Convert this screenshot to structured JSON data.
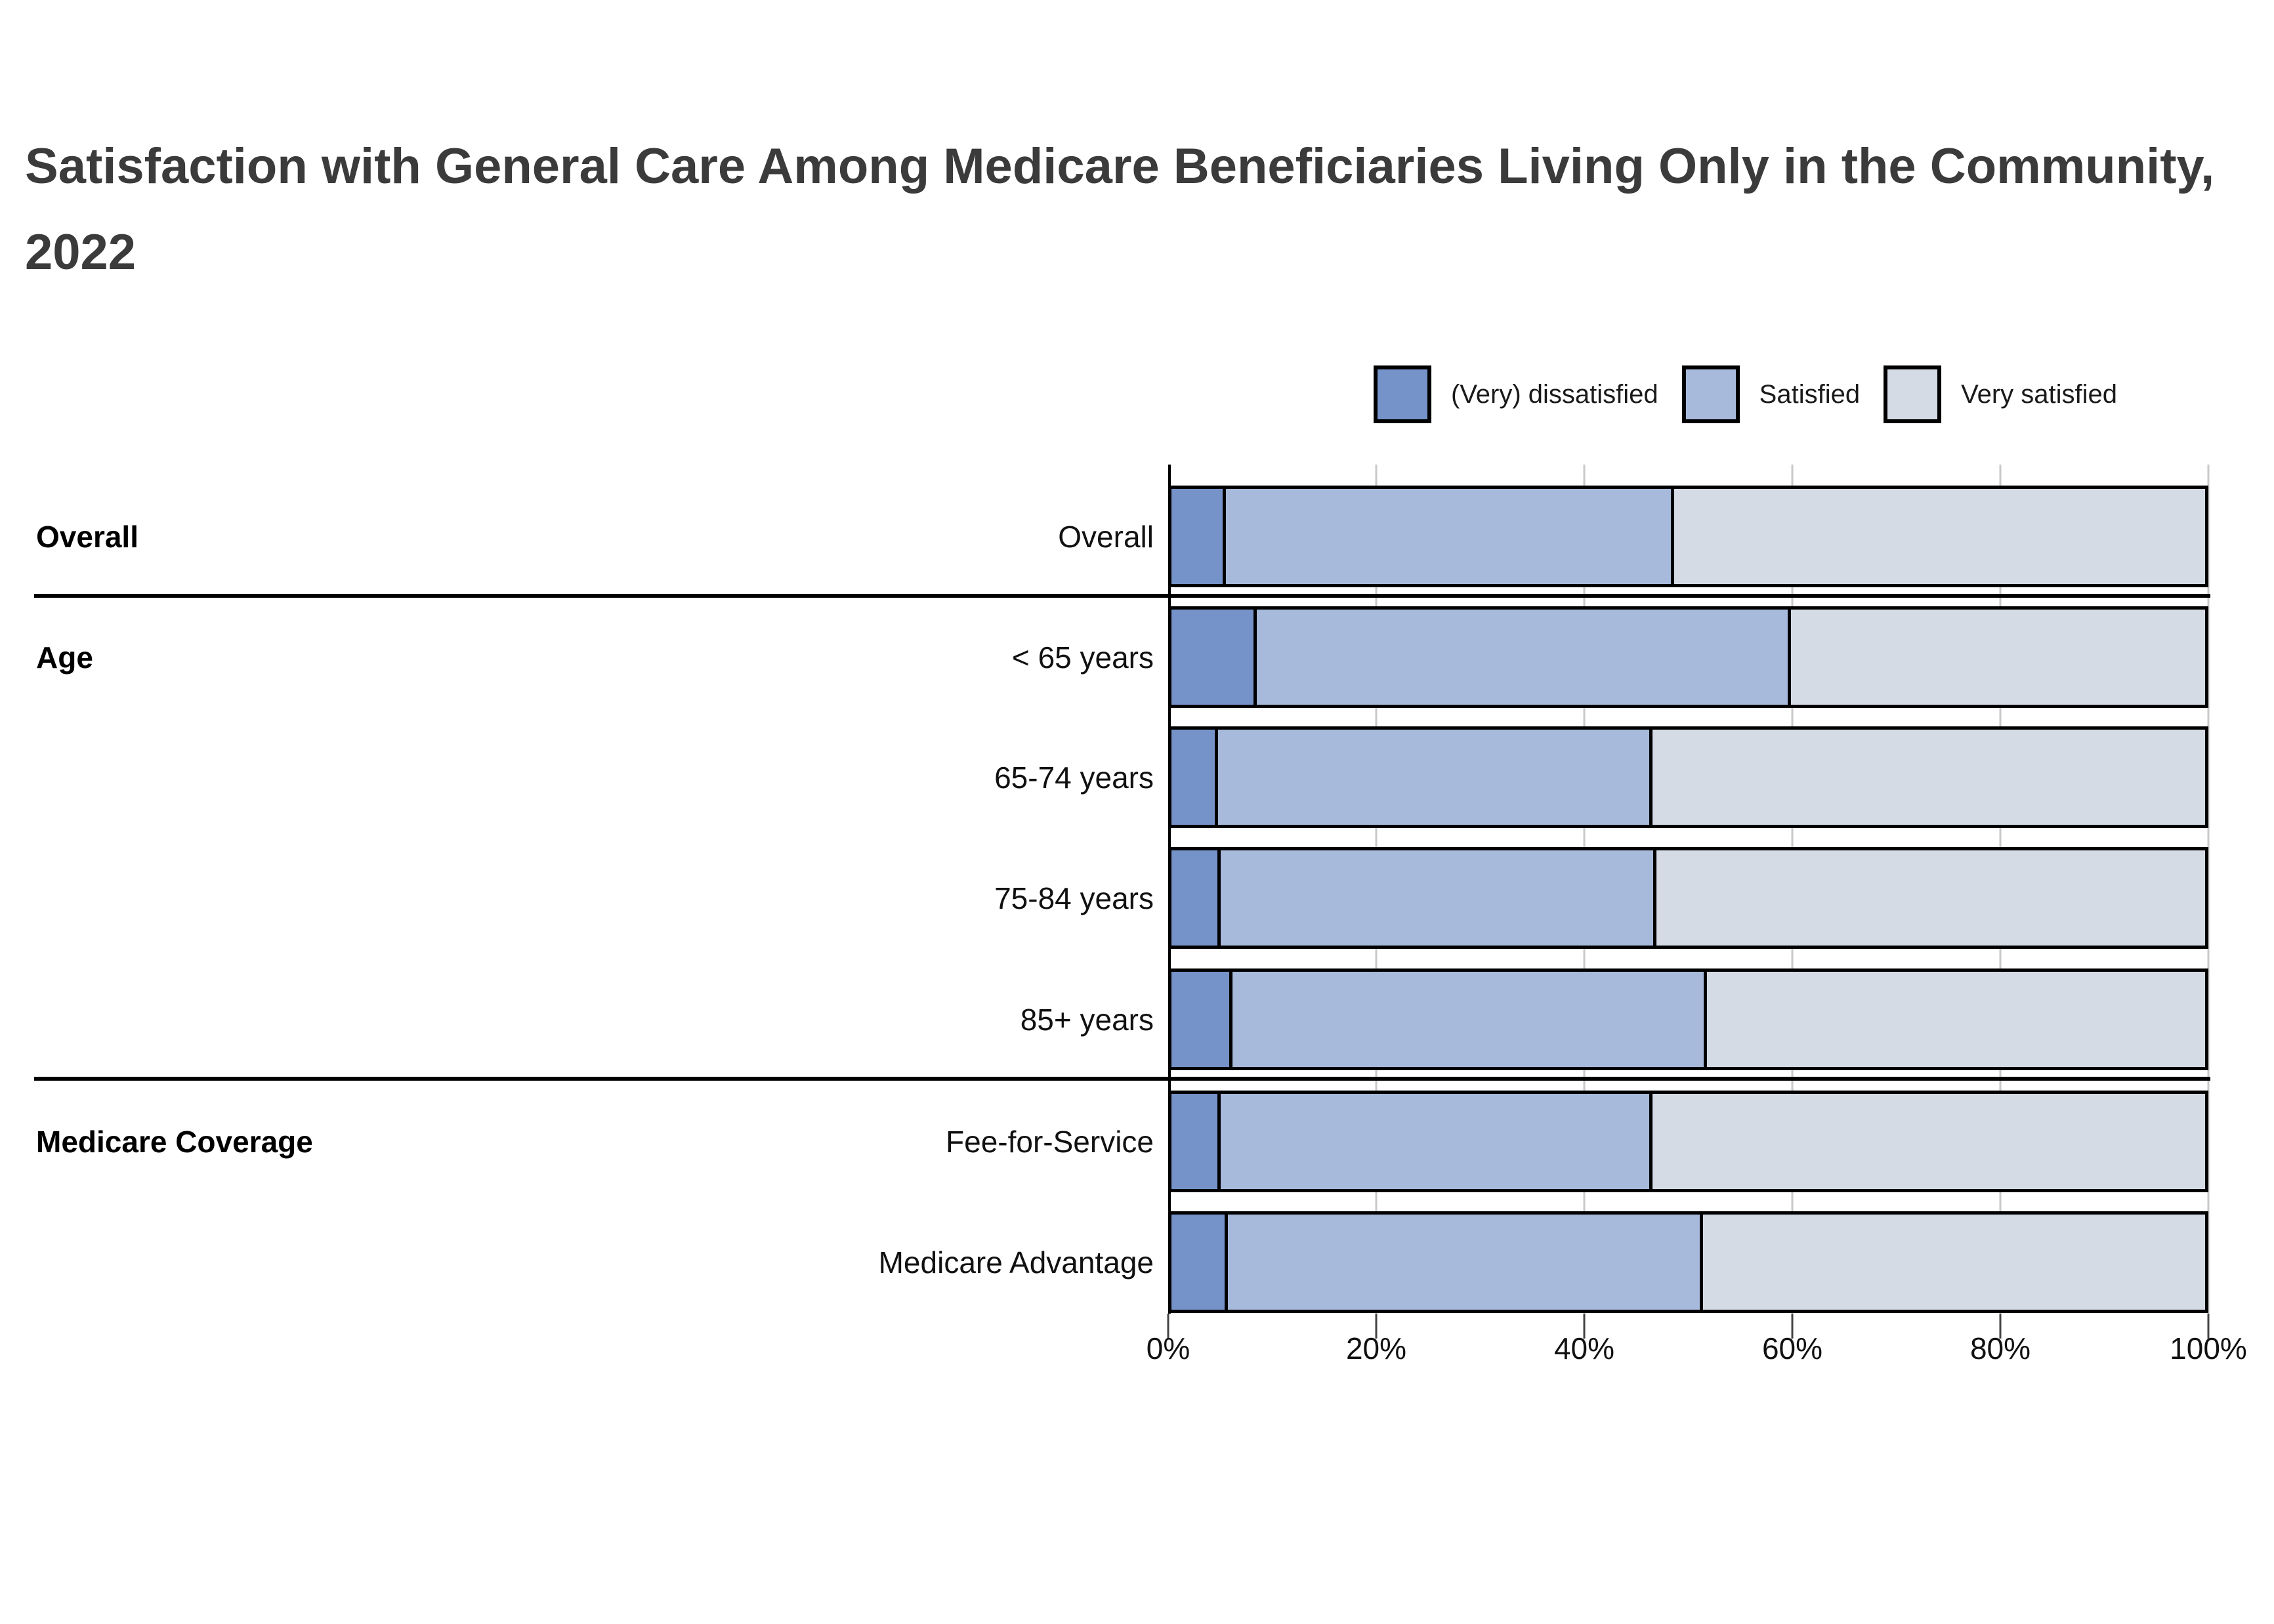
{
  "title": "Satisfaction with General Care Among Medicare Beneficiaries Living Only in the Community, 2022",
  "legend": {
    "items": [
      {
        "label": "(Very) dissatisfied",
        "color": "#7593c9"
      },
      {
        "label": "Satisfied",
        "color": "#a7badb"
      },
      {
        "label": "Very satisfied",
        "color": "#d5dbe5"
      }
    ]
  },
  "chart_data": {
    "type": "bar",
    "orientation": "horizontal_stacked",
    "title": "Satisfaction with General Care Among Medicare Beneficiaries Living Only in the Community, 2022",
    "xlabel": "",
    "ylabel": "",
    "unit": "percent",
    "xlim": [
      0,
      100
    ],
    "x_ticks": [
      "0%",
      "20%",
      "40%",
      "60%",
      "80%",
      "100%"
    ],
    "grid": true,
    "legend_position": "top-right",
    "series_names": [
      "(Very) dissatisfied",
      "Satisfied",
      "Very satisfied"
    ],
    "groups": [
      {
        "group": "Overall",
        "rows": [
          {
            "label": "Overall",
            "values": [
              5.0,
              43.3,
              51.7
            ]
          }
        ]
      },
      {
        "group": "Age",
        "rows": [
          {
            "label": "< 65 years",
            "values": [
              8.0,
              51.7,
              40.3
            ]
          },
          {
            "label": "65-74 years",
            "values": [
              4.2,
              42.0,
              53.8
            ]
          },
          {
            "label": "75-84 years",
            "values": [
              4.5,
              42.1,
              53.4
            ]
          },
          {
            "label": "85+ years",
            "values": [
              5.6,
              45.9,
              48.5
            ]
          }
        ]
      },
      {
        "group": "Medicare Coverage",
        "rows": [
          {
            "label": "Fee-for-Service",
            "values": [
              4.5,
              41.7,
              53.8
            ]
          },
          {
            "label": "Medicare Advantage",
            "values": [
              5.2,
              45.9,
              48.9
            ]
          }
        ]
      }
    ],
    "colors": {
      "dissatisfied": "#7593c9",
      "satisfied": "#a7badb",
      "very_satisfied": "#d5dbe5",
      "grid": "#c9c9c9",
      "axis": "#000000",
      "title_text": "#3b3b3b"
    }
  }
}
